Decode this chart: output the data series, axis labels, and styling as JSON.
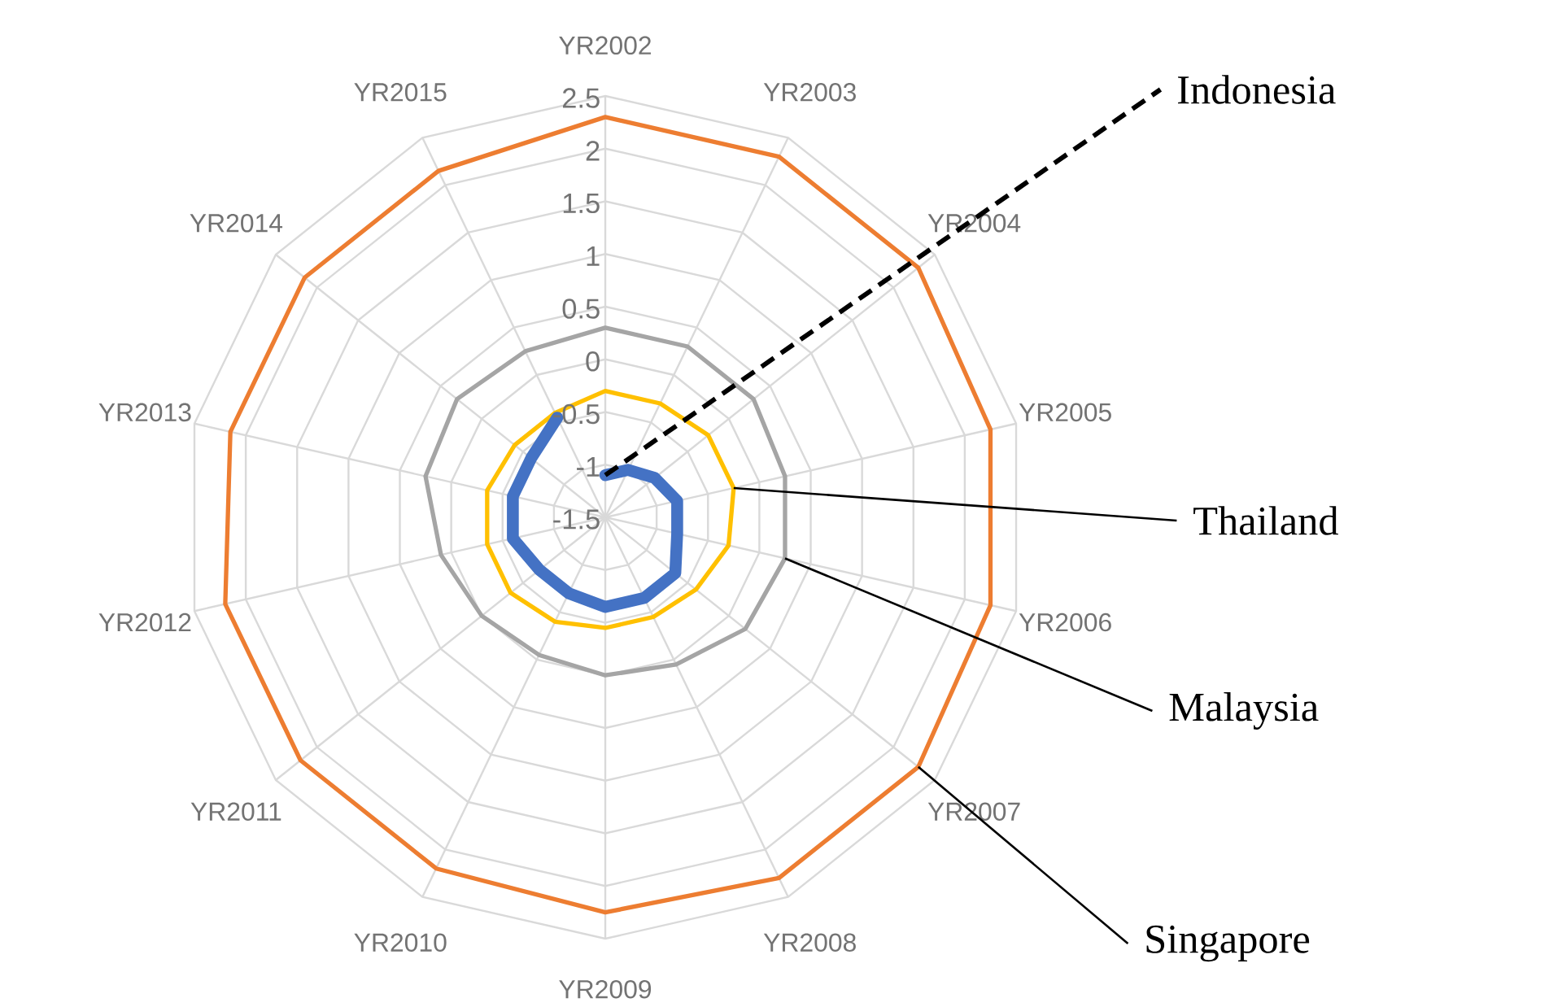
{
  "chart_data": {
    "type": "radar",
    "categories": [
      "YR2002",
      "YR2003",
      "YR2004",
      "YR2005",
      "YR2006",
      "YR2007",
      "YR2008",
      "YR2009",
      "YR2010",
      "YR2011",
      "YR2012",
      "YR2013",
      "YR2014",
      "YR2015"
    ],
    "ylim": [
      -1.5,
      2.5
    ],
    "yticks": [
      -1.5,
      -1,
      -0.5,
      0,
      0.5,
      1,
      1.5,
      2,
      2.5
    ],
    "grid": true,
    "legend": false,
    "marker": "none",
    "line_style": "solid",
    "series": [
      {
        "name": "Singapore",
        "color": "#ed7d31",
        "values": [
          2.3,
          2.3,
          2.3,
          2.25,
          2.25,
          2.3,
          2.3,
          2.25,
          2.2,
          2.2,
          2.2,
          2.15,
          2.15,
          2.15
        ]
      },
      {
        "name": "Malaysia",
        "color": "#a5a5a5",
        "values": [
          0.3,
          0.3,
          0.3,
          0.25,
          0.25,
          0.2,
          0.05,
          0.0,
          -0.05,
          0.0,
          0.1,
          0.25,
          0.3,
          0.25
        ]
      },
      {
        "name": "Thailand",
        "color": "#ffc000",
        "values": [
          -0.3,
          -0.3,
          -0.25,
          -0.25,
          -0.3,
          -0.4,
          -0.45,
          -0.45,
          -0.4,
          -0.35,
          -0.35,
          -0.35,
          -0.4,
          -0.4
        ]
      },
      {
        "name": "Indonesia",
        "color": "#4472c4",
        "values": [
          -1.1,
          -1.0,
          -0.9,
          -0.8,
          -0.8,
          -0.65,
          -0.65,
          -0.65,
          -0.7,
          -0.7,
          -0.6,
          -0.6,
          -0.6,
          -0.45
        ]
      }
    ]
  }
}
